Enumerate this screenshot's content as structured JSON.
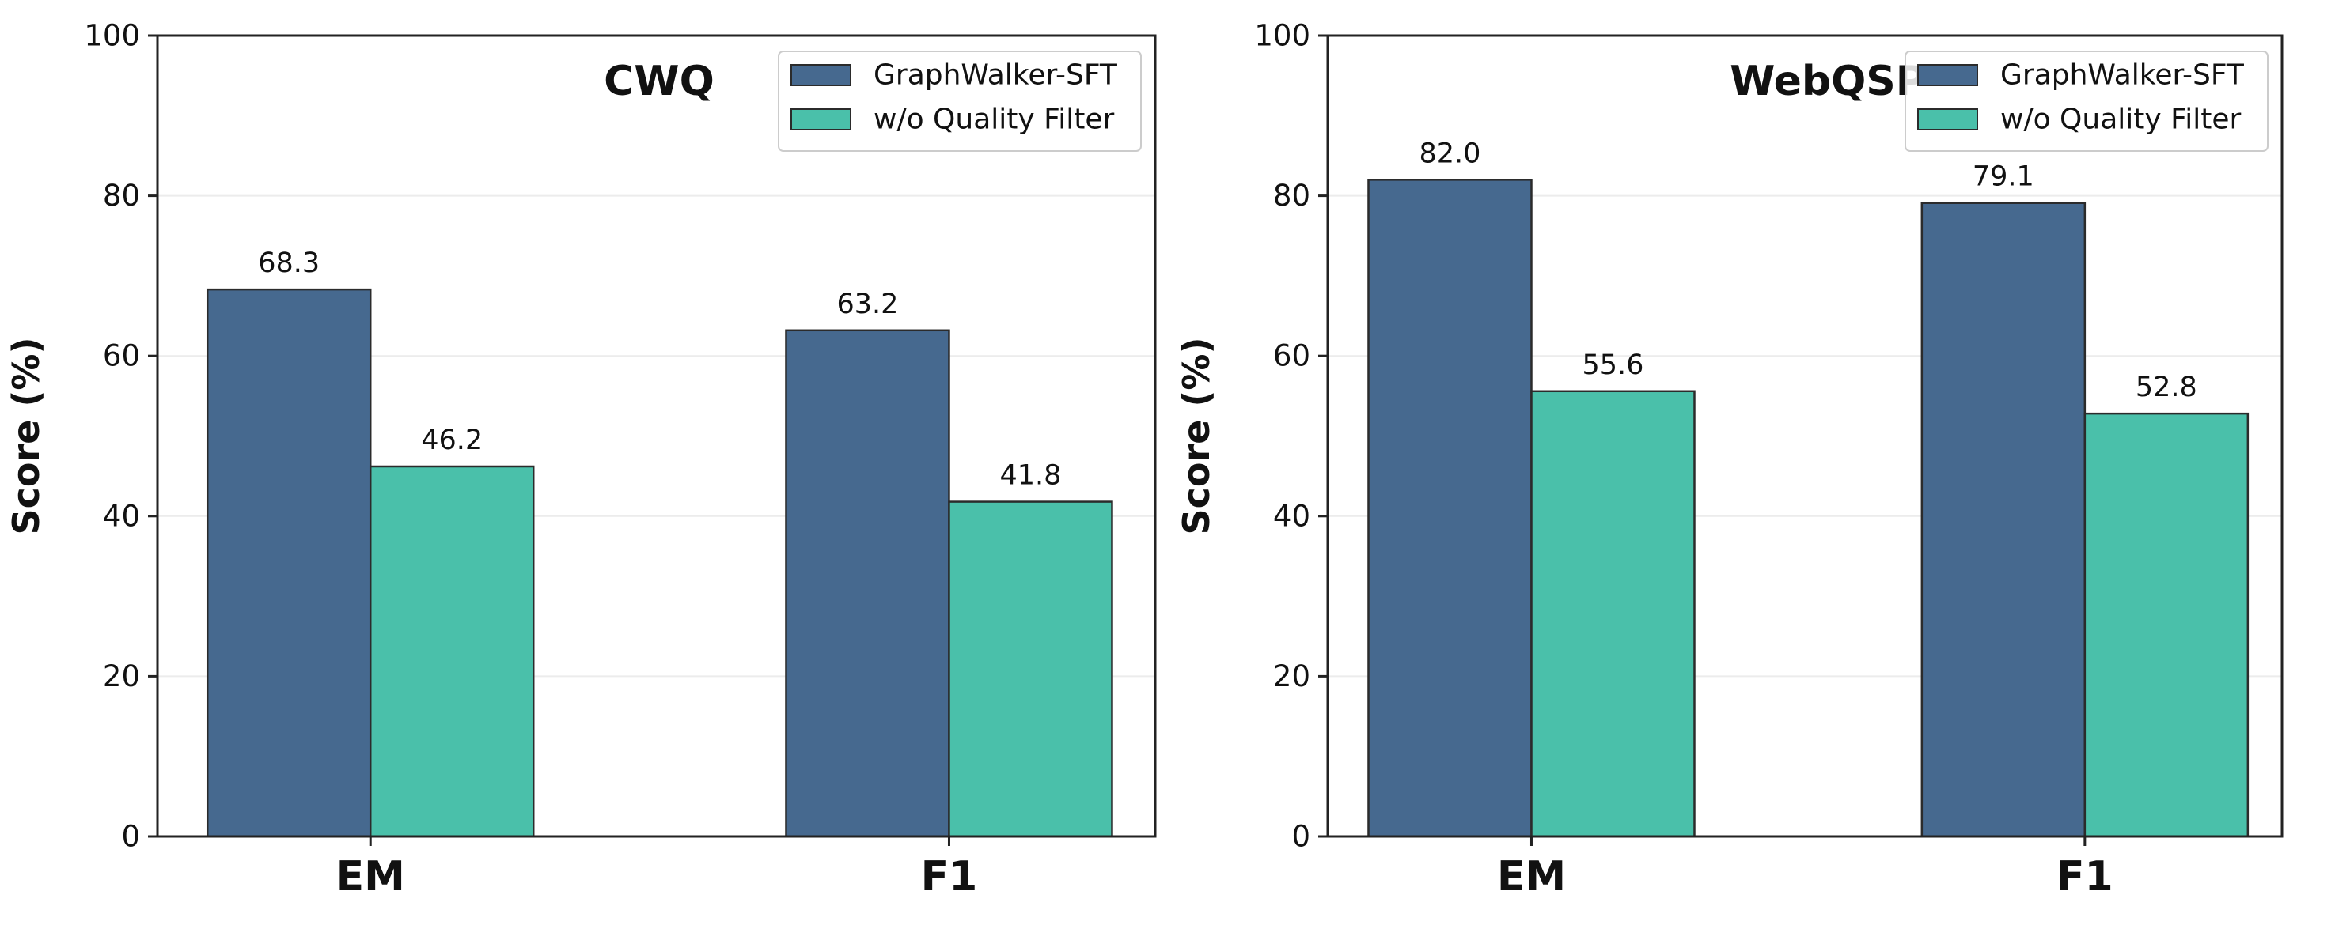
{
  "colors": {
    "series_1": "#46698f",
    "series_2": "#4ac0aa",
    "edge": "#2b2b2b",
    "axis": "#222222",
    "grid": "#ececec"
  },
  "legend_placement": "top-right",
  "chart_data": [
    {
      "type": "bar",
      "title": "CWQ",
      "categories": [
        "EM",
        "F1"
      ],
      "series": [
        {
          "name": "GraphWalker-SFT",
          "values": [
            68.3,
            63.2
          ]
        },
        {
          "name": "w/o Quality Filter",
          "values": [
            46.2,
            41.8
          ]
        }
      ],
      "xlabel": "",
      "ylabel": "Score (%)",
      "ylim": [
        0,
        100
      ],
      "yticks": [
        0,
        20,
        40,
        60,
        80,
        100
      ],
      "data_labels": [
        [
          "68.3",
          "63.2"
        ],
        [
          "46.2",
          "41.8"
        ]
      ],
      "grid": "horizontal, faint",
      "legend": "top-right"
    },
    {
      "type": "bar",
      "title": "WebQSP",
      "categories": [
        "EM",
        "F1"
      ],
      "series": [
        {
          "name": "GraphWalker-SFT",
          "values": [
            82.0,
            79.1
          ]
        },
        {
          "name": "w/o Quality Filter",
          "values": [
            55.6,
            52.8
          ]
        }
      ],
      "xlabel": "",
      "ylabel": "Score (%)",
      "ylim": [
        0,
        100
      ],
      "yticks": [
        0,
        20,
        40,
        60,
        80,
        100
      ],
      "data_labels": [
        [
          "82.0",
          "79.1"
        ],
        [
          "55.6",
          "52.8"
        ]
      ],
      "grid": "horizontal, faint",
      "legend": "top-right"
    }
  ]
}
